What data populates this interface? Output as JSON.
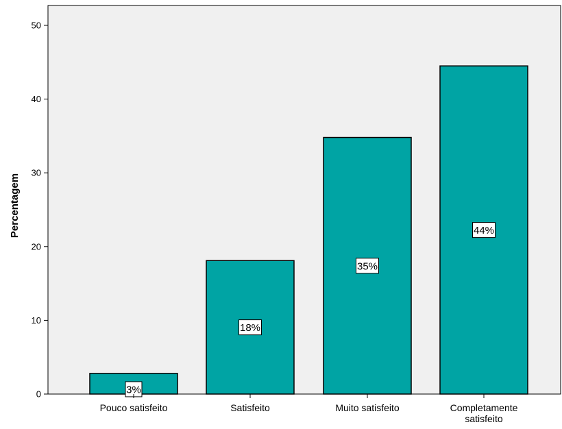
{
  "chart_data": {
    "type": "bar",
    "title": "",
    "xlabel": "",
    "ylabel": "Percentagem",
    "categories": [
      "Pouco satisfeito",
      "Satisfeito",
      "Muito satisfeito",
      "Completamente satisfeito"
    ],
    "category_label_lines": [
      [
        "Pouco satisfeito"
      ],
      [
        "Satisfeito"
      ],
      [
        "Muito satisfeito"
      ],
      [
        "Completamente",
        "satisfeito"
      ]
    ],
    "values": [
      2.8,
      18.1,
      34.8,
      44.5
    ],
    "data_labels": [
      "3%",
      "18%",
      "35%",
      "44%"
    ],
    "ylim": [
      0,
      50
    ],
    "yticks": [
      0,
      10,
      20,
      30,
      40,
      50
    ],
    "grid": false,
    "colors": {
      "bar": "#00a4a4",
      "plot_background": "#f0f0f0"
    }
  }
}
